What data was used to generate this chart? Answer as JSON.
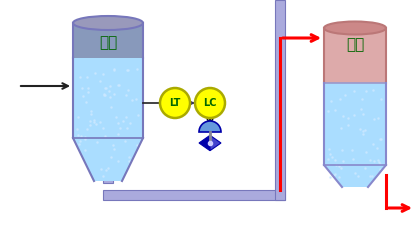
{
  "bg_color": "#ffffff",
  "tower1_label": "甲塔",
  "tower2_label": "乙塔",
  "lt_label": "LT",
  "lc_label": "LC",
  "pipe_color": "#7777bb",
  "pipe_fill": "#aaaadd",
  "liquid_color": "#aaddff",
  "liquid_color2": "#bbddee",
  "tower1_top_color": "#8899bb",
  "tower1_top_color2": "#aabbcc",
  "tower2_top_color": "#cc8888",
  "tower2_top_color2": "#ddaaaa",
  "instrument_bg": "#ffff00",
  "instrument_border": "#aaaa00",
  "instrument_text": "#006600",
  "label_color": "#006600",
  "arrow_dark": "#333366",
  "signal_color": "#111111",
  "red_color": "#ff0000",
  "valve_dark": "#0000aa",
  "valve_mid": "#4444cc",
  "valve_light": "#8888ff",
  "valve_dome": "#6699dd",
  "black_arrow": "#222222"
}
